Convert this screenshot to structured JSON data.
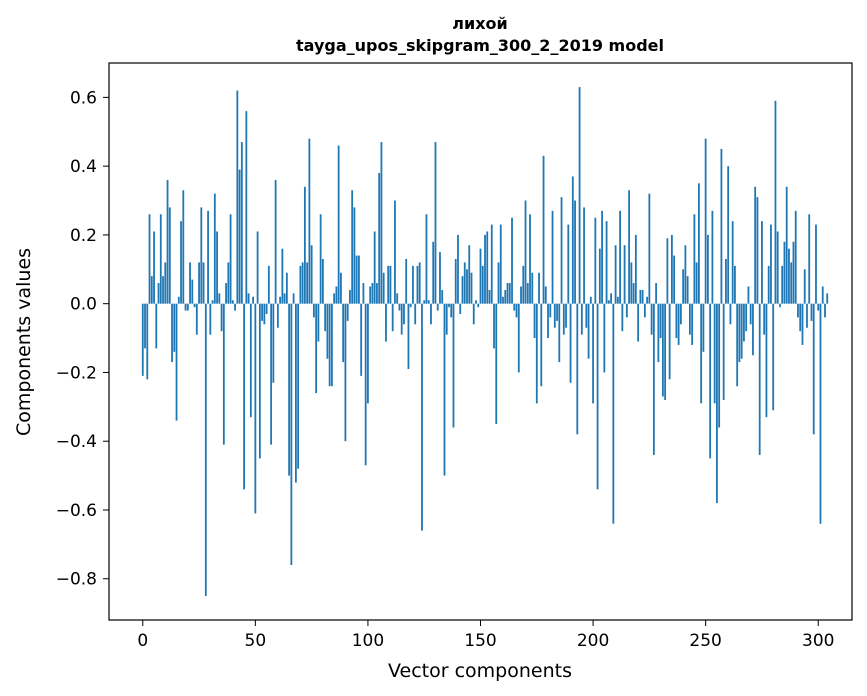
{
  "chart_data": {
    "type": "bar",
    "title": "лихой",
    "subtitle": "tayga_upos_skipgram_300_2_2019 model",
    "xlabel": "Vector components",
    "ylabel": "Components values",
    "xlim": [
      -15,
      315
    ],
    "ylim": [
      -0.92,
      0.7
    ],
    "xticks": [
      0,
      50,
      100,
      150,
      200,
      250,
      300
    ],
    "xtick_labels": [
      "0",
      "50",
      "100",
      "150",
      "200",
      "250",
      "300"
    ],
    "yticks": [
      -0.8,
      -0.6,
      -0.4,
      -0.2,
      0.0,
      0.2,
      0.4,
      0.6
    ],
    "ytick_labels": [
      "−0.8",
      "−0.6",
      "−0.4",
      "−0.2",
      "0.0",
      "0.2",
      "0.4",
      "0.6"
    ],
    "grid": false,
    "bar_color": "#1f77b4",
    "values": [
      -0.21,
      -0.13,
      -0.22,
      0.26,
      0.08,
      0.21,
      -0.13,
      0.06,
      0.26,
      0.08,
      0.12,
      0.36,
      0.28,
      -0.17,
      -0.14,
      -0.34,
      0.02,
      0.24,
      0.33,
      -0.02,
      -0.02,
      0.12,
      0.07,
      -0.01,
      -0.09,
      0.12,
      0.28,
      0.12,
      -0.85,
      0.27,
      -0.09,
      0.01,
      0.32,
      0.21,
      0.03,
      -0.08,
      -0.41,
      0.06,
      0.12,
      0.26,
      0.01,
      -0.02,
      0.62,
      0.39,
      0.47,
      -0.54,
      0.56,
      0.03,
      -0.33,
      0.02,
      -0.61,
      0.21,
      -0.45,
      -0.05,
      -0.06,
      -0.03,
      0.11,
      -0.41,
      -0.23,
      0.36,
      -0.07,
      0.02,
      0.16,
      0.03,
      0.09,
      -0.5,
      -0.76,
      0.03,
      -0.52,
      -0.48,
      0.11,
      0.12,
      0.34,
      0.12,
      0.48,
      0.17,
      -0.04,
      -0.26,
      -0.11,
      0.26,
      0.13,
      -0.08,
      -0.16,
      -0.24,
      -0.24,
      0.03,
      0.05,
      0.46,
      0.09,
      -0.17,
      -0.4,
      -0.05,
      0.04,
      0.33,
      0.28,
      0.14,
      0.14,
      -0.21,
      0.06,
      -0.47,
      -0.29,
      0.05,
      0.06,
      0.21,
      0.06,
      0.38,
      0.47,
      0.09,
      -0.11,
      0.11,
      0.11,
      -0.08,
      0.3,
      0.03,
      -0.02,
      -0.09,
      -0.06,
      0.13,
      -0.19,
      -0.01,
      0.11,
      -0.06,
      0.11,
      0.12,
      -0.66,
      0.01,
      0.26,
      0.01,
      -0.06,
      0.18,
      0.47,
      -0.02,
      0.15,
      0.04,
      -0.5,
      -0.09,
      -0.01,
      -0.04,
      -0.36,
      0.13,
      0.2,
      -0.03,
      0.08,
      0.12,
      0.1,
      0.17,
      0.09,
      -0.06,
      0.01,
      -0.01,
      0.16,
      0.11,
      0.2,
      0.21,
      0.04,
      0.23,
      -0.13,
      -0.35,
      0.12,
      0.23,
      0.02,
      0.04,
      0.06,
      0.06,
      0.25,
      -0.02,
      -0.04,
      -0.2,
      0.05,
      0.11,
      0.3,
      0.06,
      0.26,
      0.09,
      -0.1,
      -0.29,
      0.09,
      -0.24,
      0.43,
      0.05,
      -0.1,
      -0.04,
      0.27,
      -0.07,
      -0.05,
      -0.17,
      0.31,
      -0.09,
      -0.07,
      0.23,
      -0.23,
      0.37,
      0.3,
      -0.38,
      0.63,
      -0.09,
      0.28,
      -0.07,
      -0.16,
      0.02,
      -0.29,
      0.25,
      -0.54,
      0.16,
      0.27,
      -0.2,
      0.24,
      0.01,
      0.03,
      -0.64,
      0.17,
      0.02,
      0.27,
      -0.08,
      0.17,
      -0.04,
      0.33,
      0.12,
      0.06,
      0.2,
      -0.11,
      0.04,
      0.04,
      -0.04,
      0.02,
      0.32,
      -0.09,
      -0.44,
      0.06,
      -0.17,
      -0.1,
      -0.27,
      -0.28,
      0.19,
      -0.22,
      0.2,
      0.14,
      -0.1,
      -0.12,
      -0.06,
      0.1,
      0.17,
      0.08,
      -0.09,
      -0.12,
      0.26,
      0.12,
      0.35,
      -0.29,
      -0.14,
      0.48,
      0.2,
      -0.45,
      0.27,
      -0.29,
      -0.58,
      -0.36,
      0.45,
      -0.28,
      0.13,
      0.4,
      -0.06,
      0.24,
      0.11,
      -0.24,
      -0.17,
      -0.16,
      -0.11,
      -0.08,
      0.05,
      -0.06,
      -0.15,
      0.34,
      0.31,
      -0.44,
      0.24,
      -0.09,
      -0.33,
      0.11,
      0.23,
      -0.31,
      0.59,
      0.21,
      -0.01,
      0.11,
      0.18,
      0.34,
      0.16,
      0.12,
      0.18,
      0.27,
      -0.04,
      -0.08,
      -0.12,
      0.1,
      -0.07,
      0.26,
      -0.05,
      -0.38,
      0.23,
      -0.02,
      -0.64,
      0.05,
      -0.04,
      0.03
    ]
  }
}
